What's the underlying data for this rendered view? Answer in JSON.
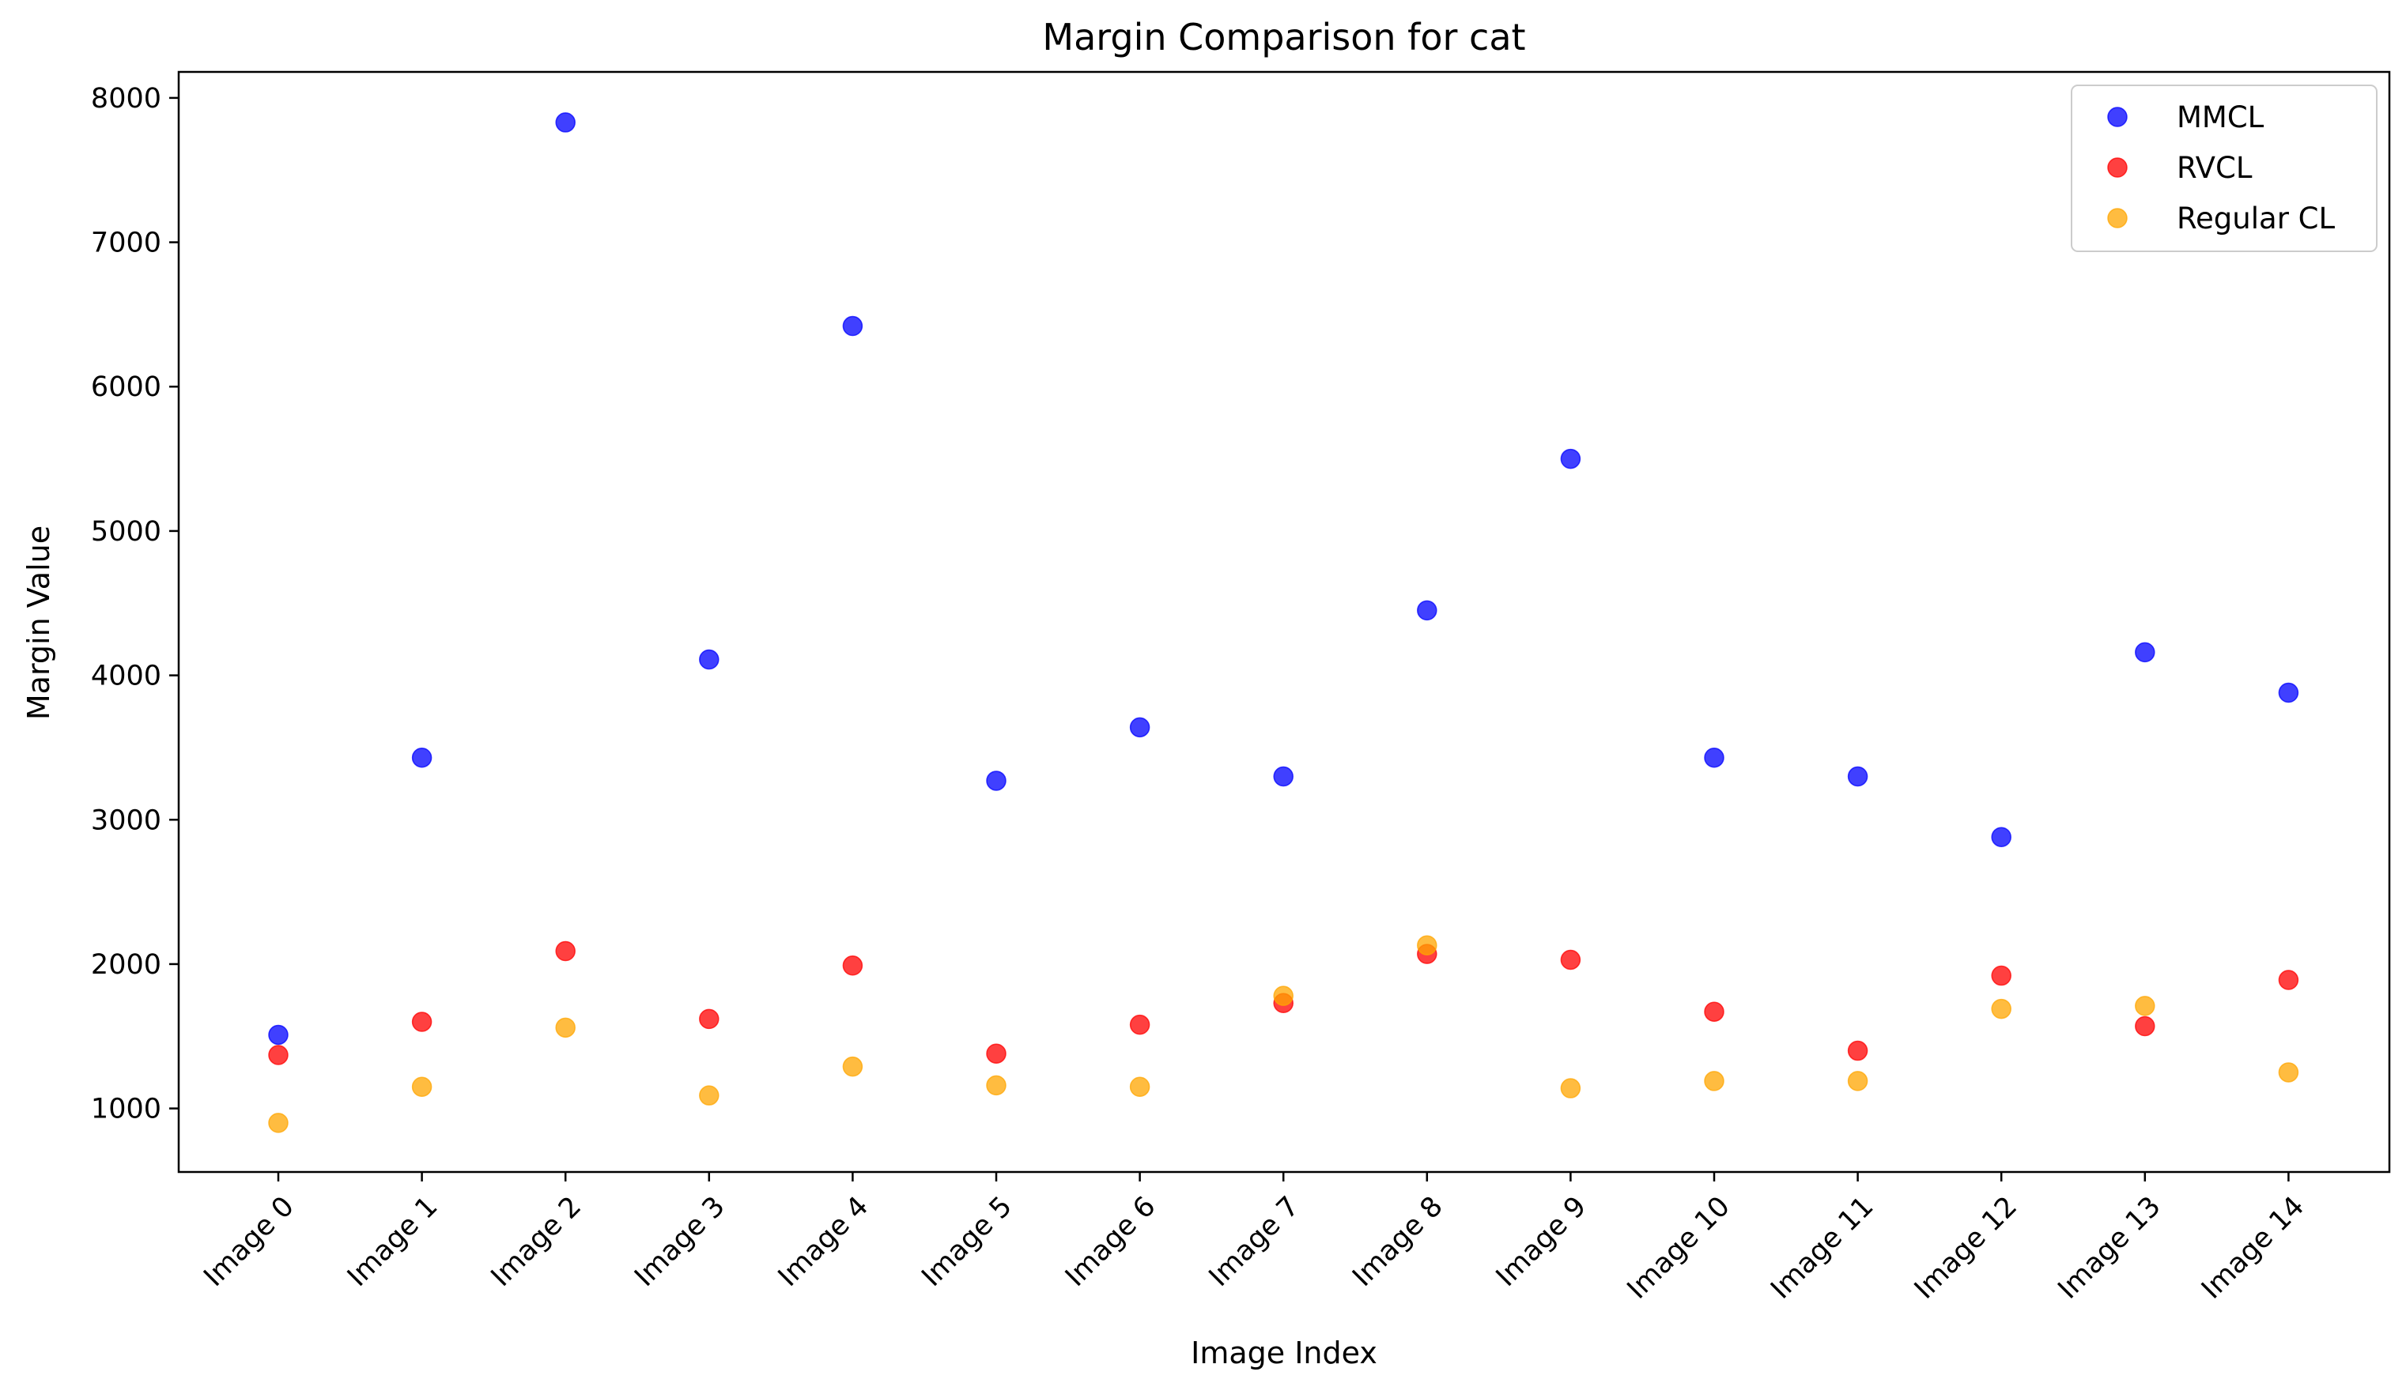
{
  "chart_data": {
    "type": "scatter",
    "title": "Margin Comparison for cat",
    "xlabel": "Image Index",
    "ylabel": "Margin Value",
    "categories": [
      "Image 0",
      "Image 1",
      "Image 2",
      "Image 3",
      "Image 4",
      "Image 5",
      "Image 6",
      "Image 7",
      "Image 8",
      "Image 9",
      "Image 10",
      "Image 11",
      "Image 12",
      "Image 13",
      "Image 14"
    ],
    "ylim": [
      560,
      8180
    ],
    "yticks": [
      1000,
      2000,
      3000,
      4000,
      5000,
      6000,
      7000,
      8000
    ],
    "series": [
      {
        "name": "MMCL",
        "color": "#0000ff",
        "values": [
          1510,
          3430,
          7830,
          4110,
          6420,
          3270,
          3640,
          3300,
          4450,
          5500,
          3430,
          3300,
          2880,
          4160,
          3880
        ]
      },
      {
        "name": "RVCL",
        "color": "#ff0000",
        "values": [
          1370,
          1600,
          2090,
          1620,
          1990,
          1380,
          1580,
          1730,
          2070,
          2030,
          1670,
          1400,
          1920,
          1570,
          1890
        ]
      },
      {
        "name": "Regular CL",
        "color": "#ffa500",
        "values": [
          900,
          1150,
          1560,
          1090,
          1290,
          1160,
          1150,
          1780,
          2130,
          1140,
          1190,
          1190,
          1690,
          1710,
          1250
        ]
      }
    ],
    "grid": false,
    "legend_position": "top-right",
    "marker_alpha": 0.75
  }
}
